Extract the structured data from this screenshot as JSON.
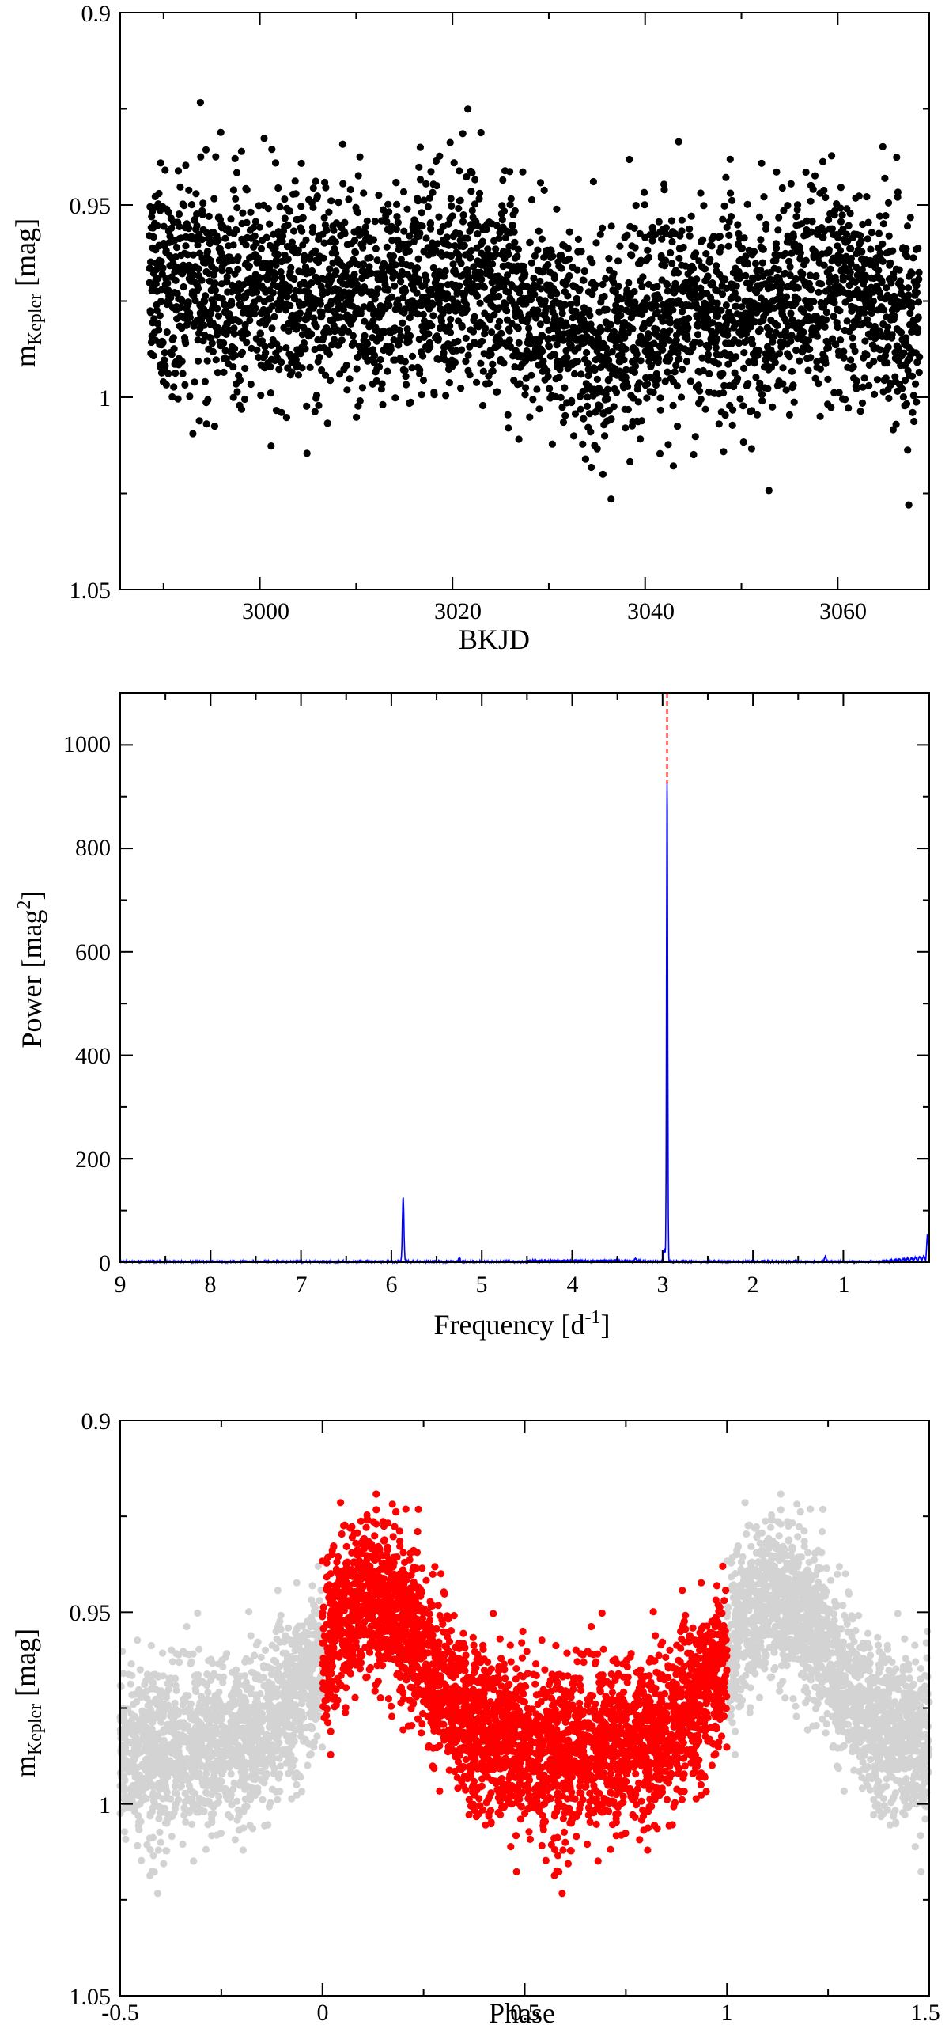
{
  "chart_data": [
    {
      "type": "scatter",
      "title": "",
      "xlabel": "BKJD",
      "ylabel": "m",
      "ylabel_sub": "Kepler",
      "ylabel_unit": "[mag]",
      "xlim": [
        2985.5,
        3069.5
      ],
      "ylim": [
        0.9,
        1.05
      ],
      "y_inverted": true,
      "xticks": [
        "3000",
        "3020",
        "3040",
        "3060"
      ],
      "yticks": [
        "0.9",
        "0.95",
        "1",
        "1.05"
      ],
      "grid": false,
      "legend": "none",
      "series": [
        {
          "color": "#000000",
          "x_range": [
            2988.5,
            3068.5
          ],
          "mean_trend": [
            [
              2988.5,
              0.972
            ],
            [
              2995,
              0.97
            ],
            [
              3000,
              0.971
            ],
            [
              3005,
              0.972
            ],
            [
              3010,
              0.973
            ],
            [
              3015,
              0.971
            ],
            [
              3020,
              0.969
            ],
            [
              3025,
              0.972
            ],
            [
              3030,
              0.978
            ],
            [
              3035,
              0.985
            ],
            [
              3040,
              0.982
            ],
            [
              3045,
              0.978
            ],
            [
              3050,
              0.979
            ],
            [
              3055,
              0.974
            ],
            [
              3060,
              0.97
            ],
            [
              3065,
              0.977
            ],
            [
              3068.5,
              0.982
            ]
          ],
          "scatter_range": [
            0.918,
            1.028
          ],
          "count": 3500
        }
      ]
    },
    {
      "type": "line",
      "title": "",
      "xlabel": "Frequency [d",
      "xlabel_sup": "-1",
      "xlabel_end": "]",
      "ylabel": "Power [mag",
      "ylabel_sup": "2",
      "ylabel_end": "]",
      "xlim": [
        9,
        0.05
      ],
      "x_reversed": true,
      "ylim": [
        0,
        1100
      ],
      "xticks": [
        "9",
        "8",
        "7",
        "6",
        "5",
        "4",
        "3",
        "2",
        "1"
      ],
      "yticks": [
        "0",
        "200",
        "400",
        "600",
        "800",
        "1000"
      ],
      "grid": false,
      "legend": "none",
      "series": [
        {
          "color": "#0000ff",
          "peaks": [
            {
              "x": 2.95,
              "y": 925
            },
            {
              "x": 5.87,
              "y": 125
            },
            {
              "x": 2.98,
              "y": 25
            },
            {
              "x": 0.07,
              "y": 40
            },
            {
              "x": 5.25,
              "y": 8
            },
            {
              "x": 1.2,
              "y": 10
            },
            {
              "x": 3.3,
              "y": 6
            }
          ]
        }
      ],
      "annotations": [
        {
          "type": "vline",
          "x": 2.95,
          "style": "dashed",
          "color": "#ff0000"
        }
      ]
    },
    {
      "type": "scatter",
      "title": "",
      "xlabel": "Phase",
      "ylabel": "m",
      "ylabel_sub": "Kepler",
      "ylabel_unit": "[mag]",
      "xlim": [
        -0.5,
        1.5
      ],
      "ylim": [
        0.9,
        1.05
      ],
      "y_inverted": true,
      "xticks": [
        "-0.5",
        "0",
        "0.5",
        "1",
        "1.5"
      ],
      "yticks": [
        "0.9",
        "0.95",
        "1",
        "1.05"
      ],
      "grid": false,
      "legend": "none",
      "series": [
        {
          "role": "folded-phase-0-to-1",
          "color": "#ff0000",
          "x_range": [
            0,
            1
          ],
          "mean_curve": [
            [
              0.0,
              0.963
            ],
            [
              0.05,
              0.952
            ],
            [
              0.1,
              0.947
            ],
            [
              0.15,
              0.947
            ],
            [
              0.2,
              0.952
            ],
            [
              0.25,
              0.961
            ],
            [
              0.3,
              0.97
            ],
            [
              0.35,
              0.977
            ],
            [
              0.4,
              0.981
            ],
            [
              0.5,
              0.985
            ],
            [
              0.6,
              0.986
            ],
            [
              0.7,
              0.985
            ],
            [
              0.8,
              0.983
            ],
            [
              0.9,
              0.976
            ],
            [
              0.95,
              0.968
            ],
            [
              1.0,
              0.963
            ]
          ],
          "count": 3500
        },
        {
          "role": "repeated-phase",
          "color": "#d3d3d3",
          "x_ranges": [
            [
              -0.5,
              0
            ],
            [
              1,
              1.5
            ]
          ]
        }
      ]
    }
  ]
}
